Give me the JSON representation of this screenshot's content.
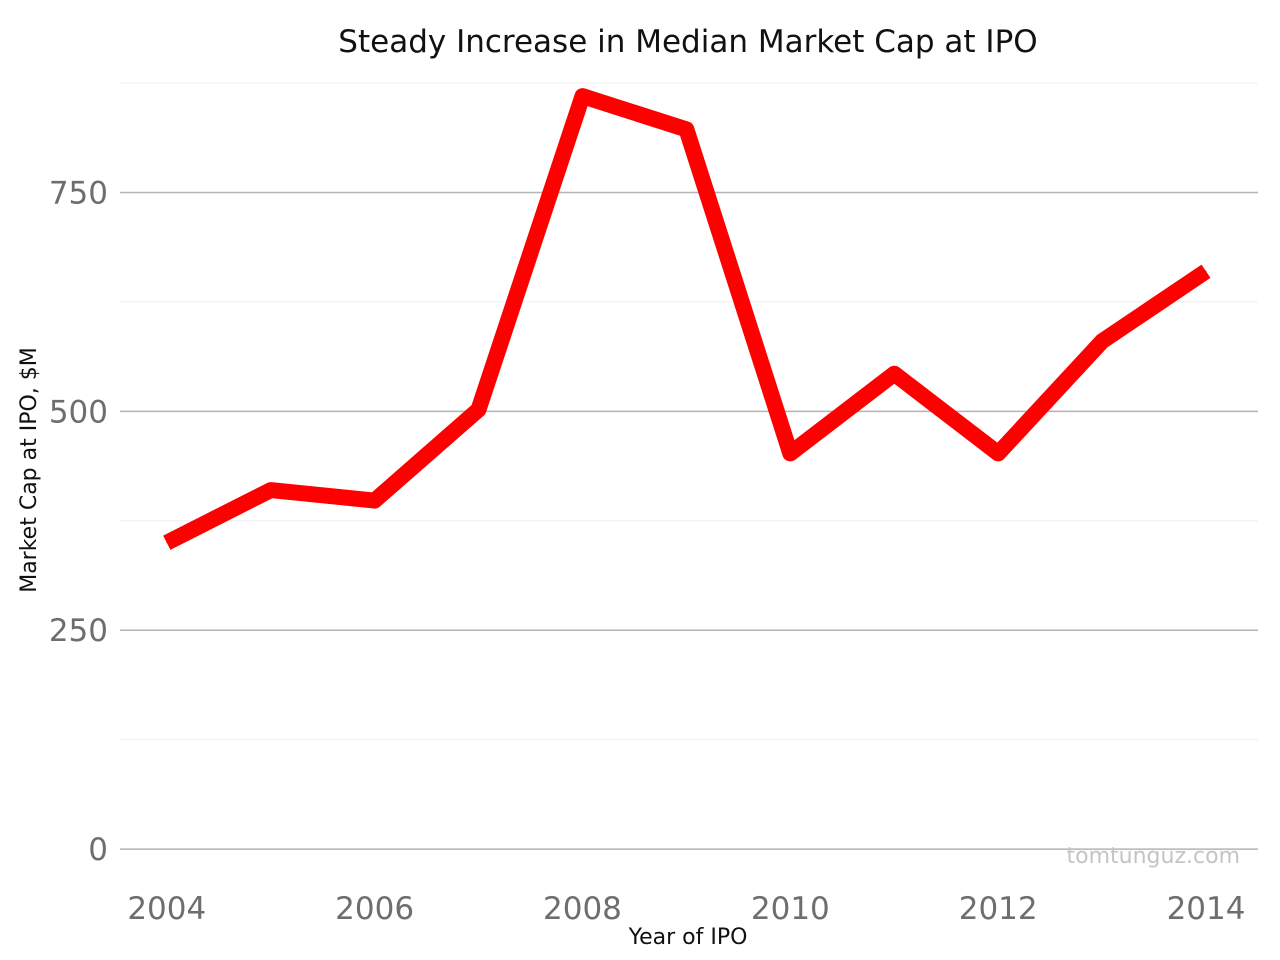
{
  "chart_data": {
    "type": "line",
    "title": "Steady Increase in Median Market Cap at IPO",
    "xlabel": "Year of IPO",
    "ylabel": "Market Cap at IPO, $M",
    "x": [
      2004,
      2005,
      2006,
      2007,
      2008,
      2009,
      2010,
      2011,
      2012,
      2013,
      2014
    ],
    "series": [
      {
        "values": [
          350,
          410,
          398,
          502,
          860,
          822,
          452,
          543,
          452,
          580,
          660
        ],
        "color": "#ff0000"
      }
    ],
    "xlim": [
      2003.55,
      2014.5
    ],
    "ylim": [
      -25,
      875
    ],
    "x_ticks": [
      2004,
      2006,
      2008,
      2010,
      2012,
      2014
    ],
    "x_tick_labels": [
      "2004",
      "2006",
      "2008",
      "2010",
      "2012",
      "2014"
    ],
    "y_ticks": [
      0,
      250,
      500,
      750
    ],
    "y_tick_labels": [
      "0",
      "250",
      "500",
      "750"
    ],
    "y_minor_ticks": [
      125,
      375,
      625,
      875
    ],
    "grid": true,
    "legend": "none"
  },
  "watermark": "tomtunguz.com"
}
